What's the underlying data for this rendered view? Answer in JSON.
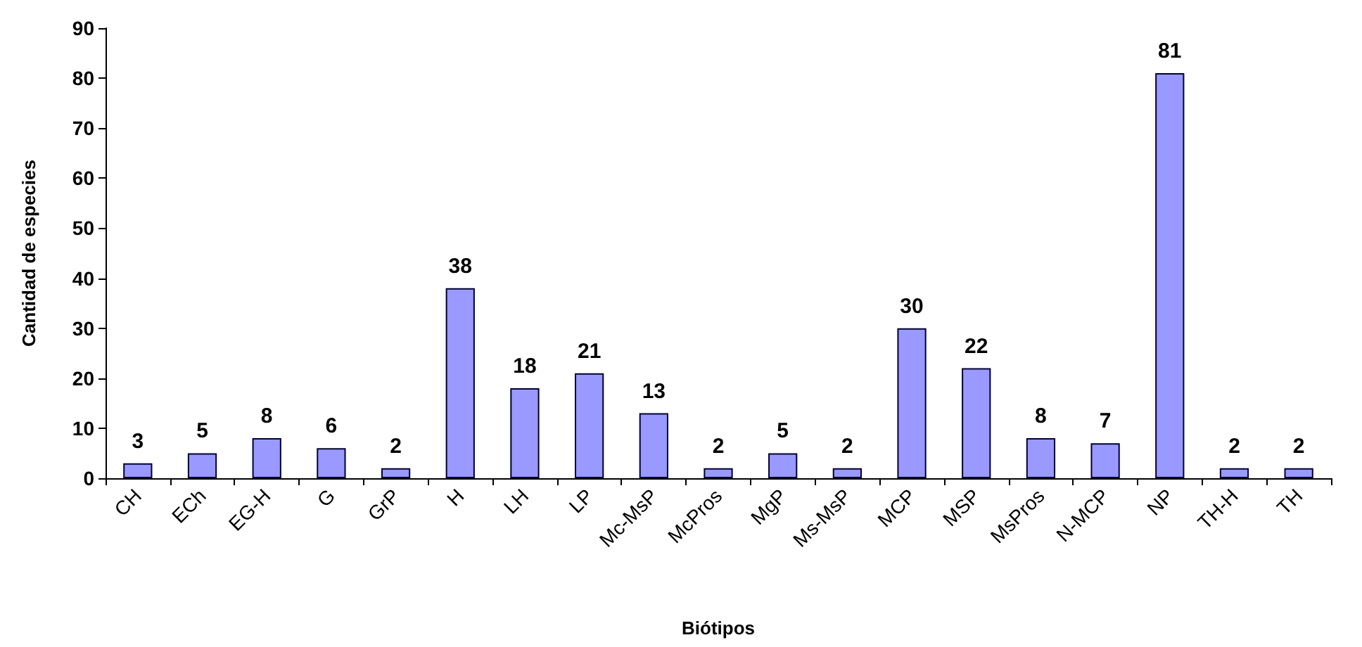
{
  "chart_data": {
    "type": "bar",
    "xlabel": "Biótipos",
    "ylabel": "Cantidad de especies",
    "categories": [
      "CH",
      "ECh",
      "EG-H",
      "G",
      "GrP",
      "H",
      "LH",
      "LP",
      "Mc-MsP",
      "McPros",
      "MgP",
      "Ms-MsP",
      "MCP",
      "MSP",
      "MsPros",
      "N-MCP",
      "NP",
      "TH-H",
      "TH"
    ],
    "values": [
      3,
      5,
      8,
      6,
      2,
      38,
      18,
      21,
      13,
      2,
      5,
      2,
      30,
      22,
      8,
      7,
      81,
      2,
      2
    ],
    "color": "#9999ff",
    "ylim": [
      0,
      90
    ],
    "yticks": [
      0,
      10,
      20,
      30,
      40,
      50,
      60,
      70,
      80,
      90
    ],
    "grid": false,
    "data_labels": true
  }
}
